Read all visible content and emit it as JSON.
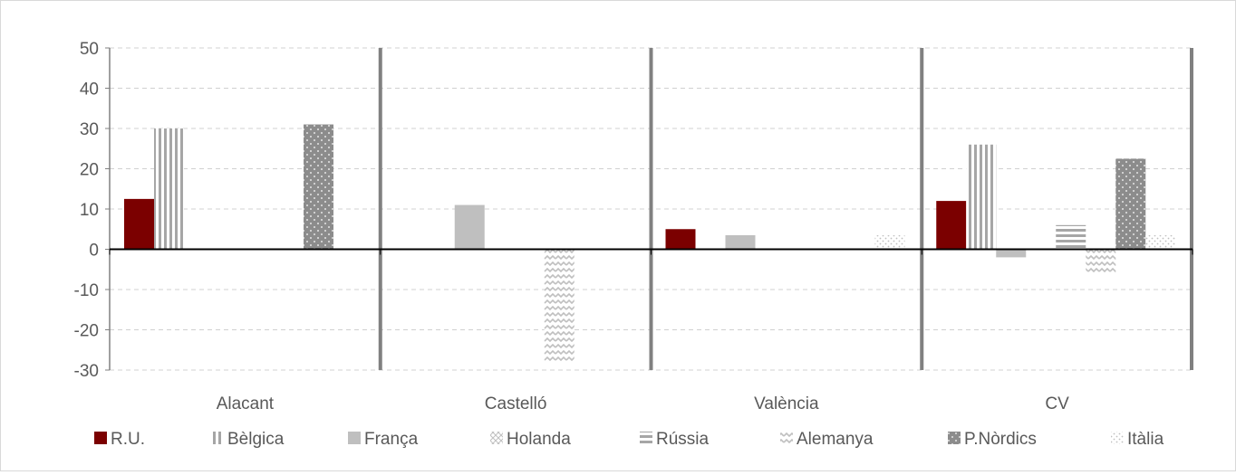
{
  "chart_data": {
    "type": "bar",
    "title": "",
    "xlabel": "",
    "ylabel": "",
    "ylim": [
      -30,
      50
    ],
    "yticks": [
      -30,
      -20,
      -10,
      0,
      10,
      20,
      30,
      40,
      50
    ],
    "ytick_labels": [
      "-30",
      "-20",
      "-10",
      "0",
      "10",
      "20",
      "30",
      "40",
      "50"
    ],
    "grid": "dashed horizontal",
    "legend_position": "bottom",
    "categories": [
      "Alacant",
      "Castelló",
      "València",
      "CV"
    ],
    "series": [
      {
        "name": "R.U.",
        "color": "#7b0000",
        "pattern": "solid",
        "values": [
          12.5,
          0,
          5,
          12
        ]
      },
      {
        "name": "Bèlgica",
        "color": "#a6a6a6",
        "pattern": "vertical-stripes",
        "values": [
          30,
          0,
          0,
          26
        ]
      },
      {
        "name": "França",
        "color": "#bfbfbf",
        "pattern": "solid",
        "values": [
          0,
          11,
          3.5,
          -2
        ]
      },
      {
        "name": "Holanda",
        "color": "#bfbfbf",
        "pattern": "diagonal-cross",
        "values": [
          0,
          0,
          0,
          0
        ]
      },
      {
        "name": "Rússia",
        "color": "#a6a6a6",
        "pattern": "horizontal-stripes",
        "values": [
          0,
          0,
          0,
          6
        ]
      },
      {
        "name": "Alemanya",
        "color": "#bfbfbf",
        "pattern": "zigzag",
        "values": [
          0,
          -28,
          0,
          -6
        ]
      },
      {
        "name": "P.Nòrdics",
        "color": "#8c8c8c",
        "pattern": "dotted-dark",
        "values": [
          31,
          0,
          0,
          22.5
        ]
      },
      {
        "name": "Itàlia",
        "color": "#d9d9d9",
        "pattern": "dotted-light",
        "values": [
          0,
          0,
          3.5,
          3.5
        ]
      }
    ]
  }
}
